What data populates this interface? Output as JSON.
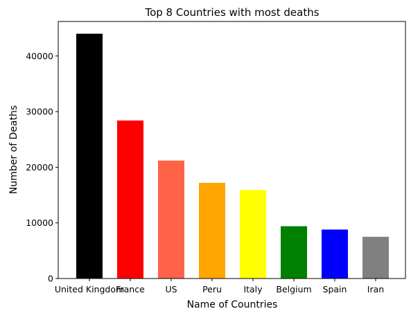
{
  "chart_data": {
    "type": "bar",
    "title": "Top 8 Countries with most deaths",
    "xlabel": "Name of Countries",
    "ylabel": "Number of Deaths",
    "categories": [
      "United Kingdom",
      "France",
      "US",
      "Peru",
      "Italy",
      "Belgium",
      "Spain",
      "Iran"
    ],
    "values": [
      44000,
      28400,
      21200,
      17200,
      15900,
      9400,
      8800,
      7500
    ],
    "colors": [
      "#000000",
      "#ff0000",
      "#ff6347",
      "#ffa500",
      "#ffff00",
      "#008000",
      "#0000ff",
      "#808080"
    ],
    "ylim": [
      0,
      46200
    ],
    "yticks": [
      0,
      10000,
      20000,
      30000,
      40000
    ],
    "grid": false,
    "legend": "none"
  }
}
